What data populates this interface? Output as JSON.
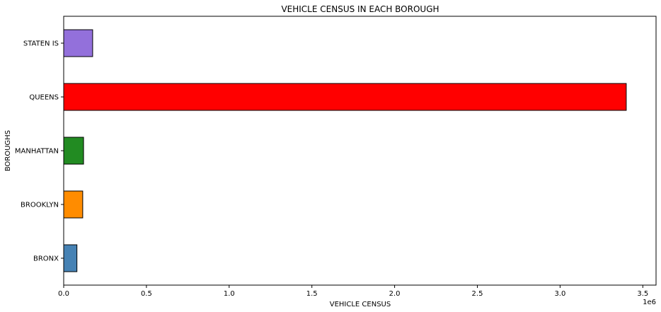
{
  "chart_data": {
    "type": "bar",
    "orientation": "horizontal",
    "title": "VEHICLE CENSUS IN EACH BOROUGH",
    "xlabel": "VEHICLE CENSUS",
    "ylabel": "BOROUGHS",
    "x_scale_label": "1e6",
    "xlim": [
      0,
      3.58
    ],
    "x_ticks": [
      0.0,
      0.5,
      1.0,
      1.5,
      2.0,
      2.5,
      3.0,
      3.5
    ],
    "x_tick_labels": [
      "0.0",
      "0.5",
      "1.0",
      "1.5",
      "2.0",
      "2.5",
      "3.0",
      "3.5"
    ],
    "grid": false,
    "legend": "none",
    "categories": [
      "BRONX",
      "BROOKLYN",
      "MANHATTAN",
      "QUEENS",
      "STATEN IS"
    ],
    "values": [
      0.08,
      0.115,
      0.12,
      3.4,
      0.175
    ],
    "colors": [
      "#4682b4",
      "#ff8c00",
      "#228b22",
      "#ff0000",
      "#9370db"
    ],
    "bar_edge_color": "#000000"
  }
}
